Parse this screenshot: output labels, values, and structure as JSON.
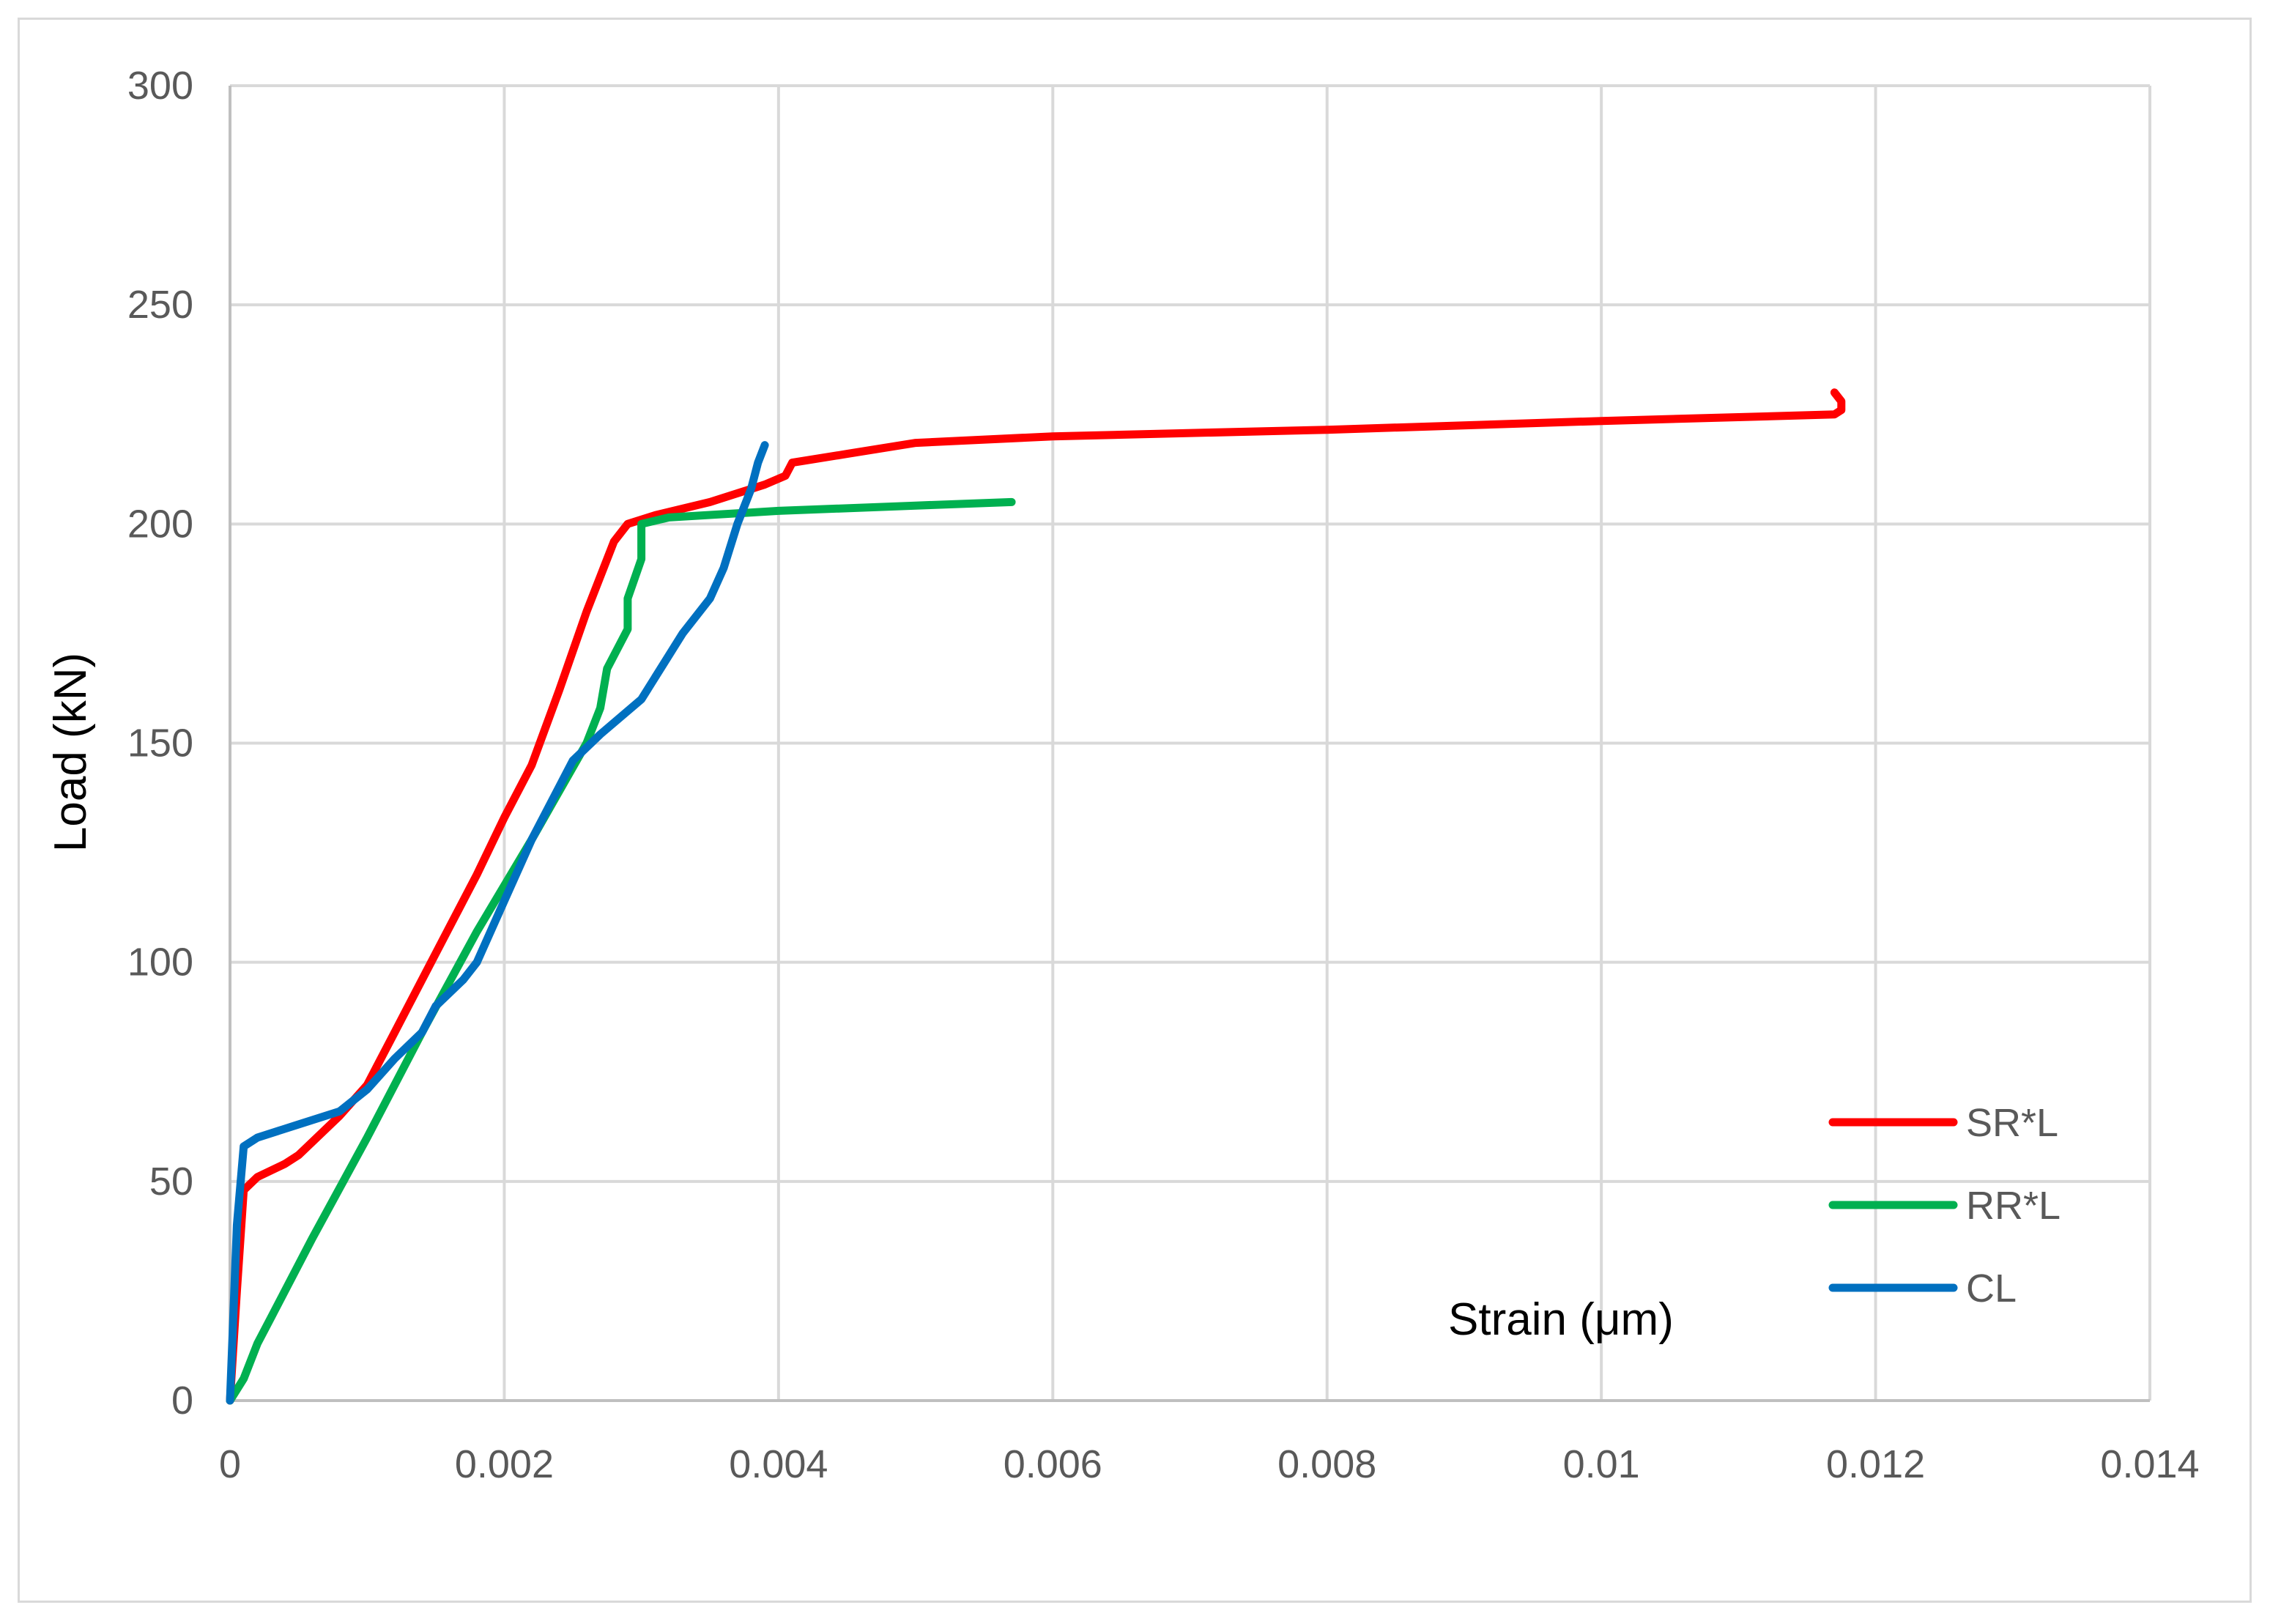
{
  "chart_data": {
    "type": "line",
    "title": "",
    "xlabel": "Strain (μm)",
    "ylabel": "Load (kN)",
    "xlim": [
      0,
      0.014
    ],
    "ylim": [
      0,
      300
    ],
    "x_ticks": [
      "0",
      "0.002",
      "0.004",
      "0.006",
      "0.008",
      "0.01",
      "0.012",
      "0.014"
    ],
    "y_ticks": [
      "0",
      "50",
      "100",
      "150",
      "200",
      "250",
      "300"
    ],
    "x_tick_values": [
      0,
      0.002,
      0.004,
      0.006,
      0.008,
      0.01,
      0.012,
      0.014
    ],
    "y_tick_values": [
      0,
      50,
      100,
      150,
      200,
      250,
      300
    ],
    "grid": true,
    "legend_position": "bottom-right",
    "series": [
      {
        "name": "SR*L",
        "color": "#ff0000",
        "points": [
          [
            0,
            0
          ],
          [
            5e-05,
            25
          ],
          [
            0.0001,
            48
          ],
          [
            0.0002,
            51
          ],
          [
            0.0004,
            54
          ],
          [
            0.0005,
            56
          ],
          [
            0.0006,
            59
          ],
          [
            0.0008,
            65
          ],
          [
            0.001,
            72
          ],
          [
            0.0012,
            84
          ],
          [
            0.0014,
            96
          ],
          [
            0.0016,
            108
          ],
          [
            0.0018,
            120
          ],
          [
            0.002,
            133
          ],
          [
            0.0022,
            145
          ],
          [
            0.0024,
            162
          ],
          [
            0.0026,
            180
          ],
          [
            0.0027,
            188
          ],
          [
            0.0028,
            196
          ],
          [
            0.0029,
            200
          ],
          [
            0.0031,
            202
          ],
          [
            0.0035,
            205
          ],
          [
            0.0039,
            209
          ],
          [
            0.00405,
            211
          ],
          [
            0.0041,
            214
          ],
          [
            0.0045,
            216
          ],
          [
            0.005,
            218.5
          ],
          [
            0.006,
            220
          ],
          [
            0.008,
            221.5
          ],
          [
            0.01,
            223.5
          ],
          [
            0.0117,
            225
          ],
          [
            0.01175,
            226
          ],
          [
            0.01175,
            228
          ],
          [
            0.0117,
            230
          ]
        ]
      },
      {
        "name": "RR*L",
        "color": "#00b050",
        "points": [
          [
            0,
            0
          ],
          [
            0.0001,
            5
          ],
          [
            0.0002,
            13
          ],
          [
            0.0003,
            19
          ],
          [
            0.0006,
            37
          ],
          [
            0.001,
            60
          ],
          [
            0.0014,
            84
          ],
          [
            0.0018,
            107
          ],
          [
            0.0022,
            128
          ],
          [
            0.0026,
            150
          ],
          [
            0.0027,
            158
          ],
          [
            0.00275,
            167
          ],
          [
            0.0029,
            176
          ],
          [
            0.0029,
            183
          ],
          [
            0.003,
            192
          ],
          [
            0.003,
            200
          ],
          [
            0.0032,
            201.5
          ],
          [
            0.004,
            203
          ],
          [
            0.005,
            204.2
          ],
          [
            0.0057,
            205
          ]
        ]
      },
      {
        "name": "CL",
        "color": "#0070c0",
        "points": [
          [
            0,
            0
          ],
          [
            5e-05,
            40
          ],
          [
            0.0001,
            58
          ],
          [
            0.0002,
            60
          ],
          [
            0.0005,
            63
          ],
          [
            0.0008,
            66
          ],
          [
            0.001,
            71
          ],
          [
            0.0012,
            78
          ],
          [
            0.0014,
            84
          ],
          [
            0.0015,
            90
          ],
          [
            0.0017,
            96
          ],
          [
            0.0018,
            100
          ],
          [
            0.002,
            114
          ],
          [
            0.0022,
            128
          ],
          [
            0.0025,
            146
          ],
          [
            0.0027,
            152
          ],
          [
            0.003,
            160
          ],
          [
            0.0032,
            170
          ],
          [
            0.0033,
            175
          ],
          [
            0.0035,
            183
          ],
          [
            0.0036,
            190
          ],
          [
            0.0037,
            200
          ],
          [
            0.0038,
            208
          ],
          [
            0.00385,
            214
          ],
          [
            0.0039,
            218
          ]
        ]
      }
    ]
  }
}
